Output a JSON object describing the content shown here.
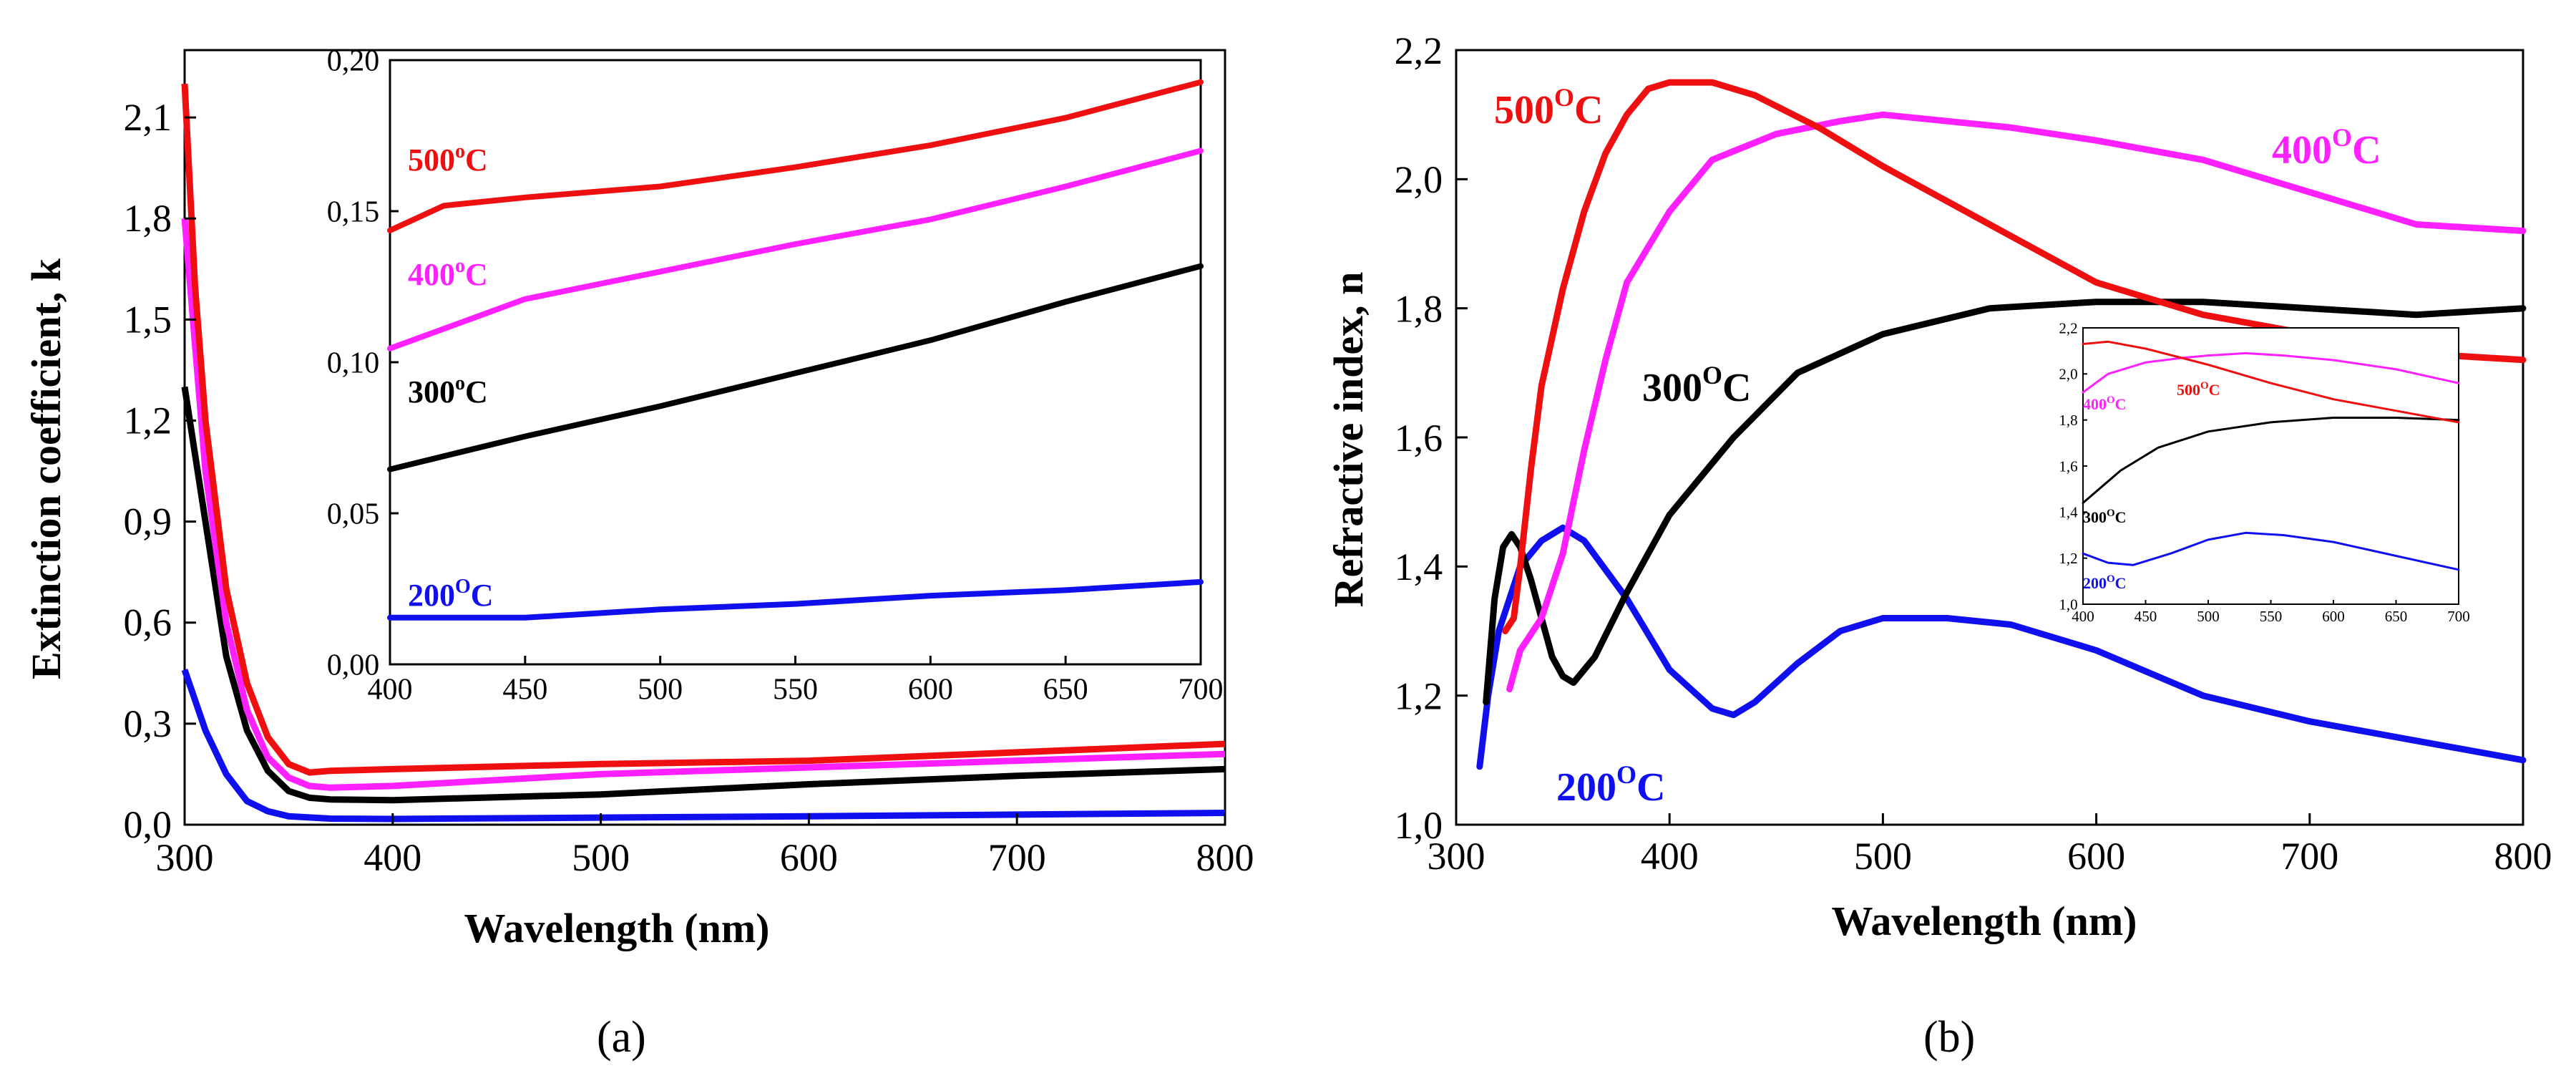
{
  "colors": {
    "c200": "#1010ee",
    "c300": "#000000",
    "c400": "#ff20ff",
    "c500": "#ee1010"
  },
  "panel_labels": {
    "a": "(a)",
    "b": "(b)"
  },
  "chart_data": [
    {
      "id": "a-main",
      "type": "line",
      "xlabel": "Wavelength (nm)",
      "ylabel": "Extinction coefficient, k",
      "xlim": [
        300,
        800
      ],
      "ylim": [
        0,
        2.3
      ],
      "xticks": [
        "300",
        "400",
        "500",
        "600",
        "700",
        "800"
      ],
      "yticks": [
        "0,0",
        "0,3",
        "0,6",
        "0,9",
        "1,2",
        "1,5",
        "1,8",
        "2,1"
      ],
      "series": [
        {
          "color": "#1010ee",
          "x": [
            300,
            310,
            320,
            330,
            340,
            350,
            370,
            400,
            500,
            600,
            700,
            800
          ],
          "y": [
            0.46,
            0.28,
            0.15,
            0.07,
            0.04,
            0.025,
            0.018,
            0.017,
            0.021,
            0.025,
            0.03,
            0.035
          ]
        },
        {
          "color": "#000000",
          "x": [
            300,
            310,
            320,
            330,
            340,
            350,
            360,
            370,
            400,
            500,
            600,
            700,
            800
          ],
          "y": [
            1.3,
            0.9,
            0.5,
            0.28,
            0.16,
            0.1,
            0.08,
            0.075,
            0.073,
            0.09,
            0.12,
            0.145,
            0.165
          ]
        },
        {
          "color": "#ff20ff",
          "x": [
            300,
            310,
            320,
            330,
            340,
            350,
            360,
            370,
            400,
            500,
            600,
            700,
            800
          ],
          "y": [
            1.8,
            1.05,
            0.6,
            0.34,
            0.2,
            0.14,
            0.115,
            0.11,
            0.115,
            0.15,
            0.17,
            0.19,
            0.21
          ]
        },
        {
          "color": "#ee1010",
          "x": [
            300,
            305,
            310,
            320,
            330,
            340,
            350,
            360,
            370,
            400,
            500,
            600,
            700,
            800
          ],
          "y": [
            2.2,
            1.6,
            1.2,
            0.7,
            0.42,
            0.26,
            0.18,
            0.155,
            0.16,
            0.165,
            0.18,
            0.19,
            0.215,
            0.24
          ]
        }
      ]
    },
    {
      "id": "a-inset",
      "type": "line",
      "xlim": [
        400,
        700
      ],
      "ylim": [
        0,
        0.22
      ],
      "xticks": [
        "400",
        "450",
        "500",
        "550",
        "600",
        "650",
        "700"
      ],
      "yticks": [
        "0,00",
        "0,05",
        "0,10",
        "0,15",
        "0,20"
      ],
      "series": [
        {
          "name": "200",
          "color": "#1010ee",
          "x": [
            400,
            450,
            500,
            550,
            600,
            650,
            700
          ],
          "y": [
            0.017,
            0.017,
            0.02,
            0.022,
            0.025,
            0.027,
            0.03
          ]
        },
        {
          "name": "300",
          "color": "#000000",
          "x": [
            400,
            450,
            500,
            550,
            600,
            650,
            700
          ],
          "y": [
            0.071,
            0.083,
            0.094,
            0.106,
            0.118,
            0.132,
            0.145
          ]
        },
        {
          "name": "400",
          "color": "#ff20ff",
          "x": [
            400,
            450,
            500,
            550,
            600,
            650,
            700
          ],
          "y": [
            0.115,
            0.133,
            0.143,
            0.153,
            0.162,
            0.174,
            0.187
          ]
        },
        {
          "name": "500",
          "color": "#ee1010",
          "x": [
            400,
            420,
            450,
            500,
            550,
            600,
            650,
            700
          ],
          "y": [
            0.158,
            0.167,
            0.17,
            0.174,
            0.181,
            0.189,
            0.199,
            0.212
          ]
        }
      ]
    },
    {
      "id": "b-main",
      "type": "line",
      "xlabel": "Wavelength (nm)",
      "ylabel": "Refractive index, n",
      "xlim": [
        300,
        800
      ],
      "ylim": [
        1.0,
        2.2
      ],
      "xticks": [
        "300",
        "400",
        "500",
        "600",
        "700",
        "800"
      ],
      "yticks": [
        "1,0",
        "1,2",
        "1,4",
        "1,6",
        "1,8",
        "2,0",
        "2,2"
      ],
      "series": [
        {
          "name": "200",
          "color": "#1010ee",
          "x": [
            311,
            315,
            320,
            330,
            340,
            350,
            360,
            380,
            400,
            420,
            430,
            440,
            460,
            480,
            500,
            530,
            560,
            600,
            650,
            700,
            750,
            800
          ],
          "y": [
            1.09,
            1.2,
            1.3,
            1.4,
            1.44,
            1.46,
            1.44,
            1.35,
            1.24,
            1.18,
            1.17,
            1.19,
            1.25,
            1.3,
            1.32,
            1.32,
            1.31,
            1.27,
            1.2,
            1.16,
            1.13,
            1.1
          ]
        },
        {
          "name": "300",
          "color": "#000000",
          "x": [
            314,
            318,
            322,
            326,
            330,
            335,
            340,
            345,
            350,
            355,
            365,
            380,
            400,
            430,
            460,
            500,
            550,
            600,
            650,
            700,
            750,
            800
          ],
          "y": [
            1.19,
            1.35,
            1.43,
            1.45,
            1.43,
            1.38,
            1.32,
            1.26,
            1.23,
            1.22,
            1.26,
            1.36,
            1.48,
            1.6,
            1.7,
            1.76,
            1.8,
            1.81,
            1.81,
            1.8,
            1.79,
            1.8
          ]
        },
        {
          "name": "400",
          "color": "#ff20ff",
          "x": [
            325,
            330,
            340,
            350,
            360,
            370,
            380,
            400,
            420,
            450,
            480,
            500,
            530,
            560,
            600,
            650,
            700,
            750,
            800
          ],
          "y": [
            1.21,
            1.27,
            1.32,
            1.42,
            1.58,
            1.72,
            1.84,
            1.95,
            2.03,
            2.07,
            2.09,
            2.1,
            2.09,
            2.08,
            2.06,
            2.03,
            1.98,
            1.93,
            1.92
          ]
        },
        {
          "name": "500",
          "color": "#ee1010",
          "x": [
            323,
            327,
            330,
            335,
            340,
            350,
            360,
            370,
            380,
            390,
            400,
            410,
            420,
            440,
            470,
            500,
            550,
            600,
            650,
            700,
            750,
            800
          ],
          "y": [
            1.3,
            1.32,
            1.4,
            1.55,
            1.68,
            1.83,
            1.95,
            2.04,
            2.1,
            2.14,
            2.15,
            2.15,
            2.15,
            2.13,
            2.08,
            2.02,
            1.93,
            1.84,
            1.79,
            1.76,
            1.73,
            1.72
          ]
        }
      ]
    },
    {
      "id": "b-inset",
      "type": "line",
      "xlim": [
        400,
        700
      ],
      "ylim": [
        1.0,
        2.2
      ],
      "xticks": [
        "400",
        "450",
        "500",
        "550",
        "600",
        "650",
        "700"
      ],
      "yticks": [
        "1,0",
        "1,2",
        "1,4",
        "1,6",
        "1,8",
        "2,0",
        "2,2"
      ],
      "series": [
        {
          "name": "200",
          "color": "#1010ee",
          "x": [
            400,
            420,
            440,
            470,
            500,
            530,
            560,
            600,
            650,
            700
          ],
          "y": [
            1.22,
            1.18,
            1.17,
            1.22,
            1.28,
            1.31,
            1.3,
            1.27,
            1.21,
            1.15
          ]
        },
        {
          "name": "300",
          "color": "#000000",
          "x": [
            400,
            430,
            460,
            500,
            550,
            600,
            650,
            700
          ],
          "y": [
            1.44,
            1.58,
            1.68,
            1.75,
            1.79,
            1.81,
            1.81,
            1.8
          ]
        },
        {
          "name": "400",
          "color": "#ff20ff",
          "x": [
            400,
            420,
            450,
            480,
            500,
            530,
            560,
            600,
            650,
            700
          ],
          "y": [
            1.92,
            2.0,
            2.05,
            2.07,
            2.08,
            2.09,
            2.08,
            2.06,
            2.02,
            1.96
          ]
        },
        {
          "name": "500",
          "color": "#ee1010",
          "x": [
            400,
            420,
            450,
            500,
            550,
            600,
            650,
            700
          ],
          "y": [
            2.13,
            2.14,
            2.11,
            2.04,
            1.96,
            1.89,
            1.84,
            1.79
          ]
        }
      ]
    }
  ],
  "curve_labels": {
    "a_inset": [
      {
        "num": "500",
        "sup": "o",
        "unit": "C",
        "color": "#ee1010"
      },
      {
        "num": "400",
        "sup": "o",
        "unit": "C",
        "color": "#ff20ff"
      },
      {
        "num": "300",
        "sup": "o",
        "unit": "C",
        "color": "#000000"
      },
      {
        "num": "200",
        "sup": "O",
        "unit": "C",
        "color": "#1010ee"
      }
    ],
    "b_main": [
      {
        "num": "500",
        "sup": "O",
        "unit": "C",
        "color": "#ee1010"
      },
      {
        "num": "400",
        "sup": "O",
        "unit": "C",
        "color": "#ff20ff"
      },
      {
        "num": "300",
        "sup": "O",
        "unit": "C",
        "color": "#000000"
      },
      {
        "num": "200",
        "sup": "O",
        "unit": "C",
        "color": "#1010ee"
      }
    ],
    "b_inset": [
      {
        "num": "500",
        "sup": "O",
        "unit": "C",
        "color": "#ee1010"
      },
      {
        "num": "400",
        "sup": "O",
        "unit": "C",
        "color": "#ff20ff"
      },
      {
        "num": "300",
        "sup": "O",
        "unit": "C",
        "color": "#000000"
      },
      {
        "num": "200",
        "sup": "O",
        "unit": "C",
        "color": "#1010ee"
      }
    ]
  }
}
